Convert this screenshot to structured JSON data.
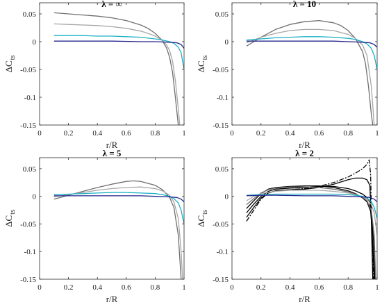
{
  "chart_data": [
    {
      "type": "line",
      "title": "λ = ∞",
      "xlabel": "r/R",
      "ylabel": "ΔC",
      "ylabel_sub": "ts",
      "xlim": [
        0,
        1
      ],
      "ylim": [
        -0.15,
        0.07
      ],
      "xticks": [
        0,
        0.2,
        0.4,
        0.6,
        0.8,
        1
      ],
      "xtick_labels": [
        "0",
        "0.2",
        "0.4",
        "0.6",
        "0.8",
        "1"
      ],
      "yticks": [
        0.05,
        0,
        -0.05,
        -0.1,
        -0.15
      ],
      "ytick_labels": [
        "0.05",
        "0",
        "-0.05",
        "-0.1",
        "-0.15"
      ],
      "grid": false,
      "series": [
        {
          "color": "#6e6e6e",
          "dash": "solid",
          "x": [
            0.1,
            0.2,
            0.3,
            0.4,
            0.5,
            0.6,
            0.7,
            0.75,
            0.8,
            0.85,
            0.88,
            0.9,
            0.92,
            0.94,
            0.96
          ],
          "y": [
            0.052,
            0.05,
            0.048,
            0.046,
            0.043,
            0.038,
            0.03,
            0.024,
            0.015,
            0.002,
            -0.012,
            -0.028,
            -0.055,
            -0.1,
            -0.15
          ]
        },
        {
          "color": "#a6a6a6",
          "dash": "solid",
          "x": [
            0.1,
            0.2,
            0.3,
            0.4,
            0.5,
            0.6,
            0.7,
            0.75,
            0.8,
            0.85,
            0.88,
            0.9,
            0.92,
            0.94,
            0.96,
            0.97
          ],
          "y": [
            0.032,
            0.031,
            0.03,
            0.029,
            0.027,
            0.024,
            0.019,
            0.015,
            0.01,
            0.002,
            -0.006,
            -0.016,
            -0.035,
            -0.07,
            -0.12,
            -0.15
          ]
        },
        {
          "color": "#1ab0c4",
          "dash": "solid",
          "x": [
            0.1,
            0.2,
            0.3,
            0.4,
            0.5,
            0.6,
            0.7,
            0.8,
            0.85,
            0.9,
            0.93,
            0.96,
            0.98,
            0.99,
            1.0
          ],
          "y": [
            0.011,
            0.011,
            0.011,
            0.01,
            0.01,
            0.009,
            0.008,
            0.005,
            0.003,
            0.0,
            -0.003,
            -0.01,
            -0.02,
            -0.035,
            -0.05
          ]
        },
        {
          "color": "#23238c",
          "dash": "solid",
          "x": [
            0.1,
            0.3,
            0.5,
            0.7,
            0.8,
            0.9,
            0.95,
            0.98,
            1.0
          ],
          "y": [
            0.001,
            0.001,
            0.001,
            0.0,
            0.0,
            -0.001,
            -0.002,
            -0.005,
            -0.012
          ]
        }
      ]
    },
    {
      "type": "line",
      "title": "λ = 10",
      "xlabel": "r/R",
      "ylabel": "ΔC",
      "ylabel_sub": "ts",
      "xlim": [
        0,
        1
      ],
      "ylim": [
        -0.15,
        0.07
      ],
      "xticks": [
        0,
        0.2,
        0.4,
        0.6,
        0.8,
        1
      ],
      "xtick_labels": [
        "0",
        "0.2",
        "0.4",
        "0.6",
        "0.8",
        "1"
      ],
      "yticks": [
        0.05,
        0,
        -0.05,
        -0.1,
        -0.15
      ],
      "ytick_labels": [
        "0.05",
        "0",
        "-0.05",
        "-0.1",
        "-0.15"
      ],
      "grid": false,
      "series": [
        {
          "color": "#6e6e6e",
          "dash": "solid",
          "x": [
            0.1,
            0.2,
            0.3,
            0.4,
            0.5,
            0.6,
            0.7,
            0.75,
            0.8,
            0.85,
            0.9,
            0.92,
            0.94,
            0.96,
            0.97
          ],
          "y": [
            -0.008,
            0.008,
            0.022,
            0.031,
            0.036,
            0.038,
            0.034,
            0.029,
            0.02,
            0.006,
            -0.018,
            -0.04,
            -0.08,
            -0.13,
            -0.15
          ]
        },
        {
          "color": "#a6a6a6",
          "dash": "solid",
          "x": [
            0.1,
            0.2,
            0.3,
            0.4,
            0.5,
            0.6,
            0.7,
            0.8,
            0.85,
            0.9,
            0.93,
            0.96,
            0.98
          ],
          "y": [
            -0.002,
            0.008,
            0.015,
            0.02,
            0.022,
            0.022,
            0.02,
            0.013,
            0.006,
            -0.006,
            -0.025,
            -0.08,
            -0.15
          ]
        },
        {
          "color": "#1ab0c4",
          "dash": "solid",
          "x": [
            0.1,
            0.2,
            0.3,
            0.4,
            0.5,
            0.6,
            0.7,
            0.8,
            0.85,
            0.9,
            0.93,
            0.96,
            0.98,
            1.0
          ],
          "y": [
            0.003,
            0.005,
            0.007,
            0.008,
            0.009,
            0.009,
            0.008,
            0.006,
            0.004,
            0.0,
            -0.004,
            -0.012,
            -0.025,
            -0.05
          ]
        },
        {
          "color": "#23238c",
          "dash": "solid",
          "x": [
            0.1,
            0.3,
            0.5,
            0.7,
            0.8,
            0.9,
            0.95,
            0.98,
            1.0
          ],
          "y": [
            0.001,
            0.001,
            0.001,
            0.001,
            0.0,
            -0.001,
            -0.002,
            -0.005,
            -0.01
          ]
        }
      ]
    },
    {
      "type": "line",
      "title": "λ = 5",
      "xlabel": "r/R",
      "ylabel": "ΔC",
      "ylabel_sub": "ts",
      "xlim": [
        0,
        1
      ],
      "ylim": [
        -0.15,
        0.07
      ],
      "xticks": [
        0,
        0.2,
        0.4,
        0.6,
        0.8,
        1
      ],
      "xtick_labels": [
        "0",
        "0.2",
        "0.4",
        "0.6",
        "0.8",
        "1"
      ],
      "yticks": [
        0.05,
        0,
        -0.05,
        -0.1,
        -0.15
      ],
      "ytick_labels": [
        "0.05",
        "0",
        "-0.05",
        "-0.1",
        "-0.15"
      ],
      "grid": false,
      "series": [
        {
          "color": "#6e6e6e",
          "dash": "solid",
          "x": [
            0.1,
            0.2,
            0.3,
            0.4,
            0.5,
            0.6,
            0.65,
            0.7,
            0.8,
            0.85,
            0.9,
            0.93,
            0.96,
            0.98
          ],
          "y": [
            -0.005,
            0.002,
            0.009,
            0.016,
            0.022,
            0.027,
            0.028,
            0.027,
            0.02,
            0.012,
            -0.002,
            -0.02,
            -0.07,
            -0.15
          ]
        },
        {
          "color": "#a6a6a6",
          "dash": "solid",
          "x": [
            0.1,
            0.2,
            0.3,
            0.4,
            0.5,
            0.6,
            0.7,
            0.8,
            0.85,
            0.9,
            0.93,
            0.96,
            0.98,
            0.99
          ],
          "y": [
            -0.001,
            0.003,
            0.007,
            0.011,
            0.014,
            0.016,
            0.017,
            0.014,
            0.01,
            0.002,
            -0.01,
            -0.04,
            -0.1,
            -0.15
          ]
        },
        {
          "color": "#1ab0c4",
          "dash": "solid",
          "x": [
            0.1,
            0.2,
            0.3,
            0.4,
            0.5,
            0.6,
            0.7,
            0.8,
            0.85,
            0.9,
            0.93,
            0.96,
            0.98,
            1.0
          ],
          "y": [
            0.003,
            0.004,
            0.005,
            0.006,
            0.007,
            0.007,
            0.006,
            0.005,
            0.003,
            0.0,
            -0.004,
            -0.012,
            -0.025,
            -0.05
          ]
        },
        {
          "color": "#23238c",
          "dash": "solid",
          "x": [
            0.1,
            0.3,
            0.5,
            0.7,
            0.8,
            0.9,
            0.95,
            0.98,
            1.0
          ],
          "y": [
            0.001,
            0.001,
            0.001,
            0.001,
            0.0,
            -0.001,
            -0.002,
            -0.005,
            -0.01
          ]
        }
      ]
    },
    {
      "type": "line",
      "title": "λ = 2",
      "xlabel": "r/R",
      "ylabel": "ΔC",
      "ylabel_sub": "ts",
      "xlim": [
        0,
        1
      ],
      "ylim": [
        -0.15,
        0.07
      ],
      "xticks": [
        0,
        0.2,
        0.4,
        0.6,
        0.8,
        1
      ],
      "xtick_labels": [
        "0",
        "0.2",
        "0.4",
        "0.6",
        "0.8",
        "1"
      ],
      "yticks": [
        0.05,
        0,
        -0.05,
        -0.1,
        -0.15
      ],
      "ytick_labels": [
        "0.05",
        "0",
        "-0.05",
        "-0.1",
        "-0.15"
      ],
      "grid": false,
      "series": [
        {
          "color": "#000000",
          "dash": "dashdot",
          "x": [
            0.1,
            0.15,
            0.2,
            0.25,
            0.3,
            0.4,
            0.5,
            0.6,
            0.7,
            0.8,
            0.85,
            0.9,
            0.93,
            0.945,
            0.955,
            0.965,
            0.975
          ],
          "y": [
            -0.045,
            -0.025,
            -0.005,
            0.006,
            0.01,
            0.012,
            0.014,
            0.018,
            0.025,
            0.035,
            0.042,
            0.05,
            0.058,
            0.066,
            0.04,
            -0.08,
            -0.15
          ]
        },
        {
          "color": "#000000",
          "dash": "solid",
          "x": [
            0.1,
            0.15,
            0.2,
            0.25,
            0.3,
            0.4,
            0.5,
            0.6,
            0.7,
            0.8,
            0.85,
            0.9,
            0.93,
            0.95,
            0.96,
            0.97
          ],
          "y": [
            -0.038,
            -0.02,
            -0.003,
            0.006,
            0.01,
            0.012,
            0.013,
            0.016,
            0.022,
            0.03,
            0.033,
            0.033,
            0.03,
            0.02,
            -0.04,
            -0.15
          ]
        },
        {
          "color": "#000000",
          "dash": "solid",
          "x": [
            0.1,
            0.15,
            0.2,
            0.25,
            0.3,
            0.4,
            0.5,
            0.6,
            0.7,
            0.8,
            0.85,
            0.9,
            0.93,
            0.95,
            0.965,
            0.98
          ],
          "y": [
            -0.03,
            -0.014,
            0.0,
            0.009,
            0.013,
            0.015,
            0.016,
            0.018,
            0.018,
            0.014,
            0.01,
            0.004,
            -0.002,
            -0.01,
            -0.06,
            -0.15
          ]
        },
        {
          "color": "#000000",
          "dash": "solid",
          "x": [
            0.1,
            0.15,
            0.2,
            0.25,
            0.3,
            0.4,
            0.5,
            0.6,
            0.7,
            0.8,
            0.85,
            0.9,
            0.93,
            0.96,
            0.975,
            0.985
          ],
          "y": [
            -0.022,
            -0.008,
            0.005,
            0.013,
            0.016,
            0.018,
            0.019,
            0.019,
            0.016,
            0.01,
            0.005,
            -0.003,
            -0.01,
            -0.03,
            -0.08,
            -0.15
          ]
        },
        {
          "color": "#6e6e6e",
          "dash": "solid",
          "x": [
            0.1,
            0.15,
            0.2,
            0.25,
            0.3,
            0.4,
            0.5,
            0.6,
            0.7,
            0.8,
            0.85,
            0.9,
            0.93,
            0.96,
            0.98,
            0.99
          ],
          "y": [
            -0.015,
            -0.004,
            0.006,
            0.012,
            0.015,
            0.017,
            0.017,
            0.016,
            0.013,
            0.008,
            0.004,
            -0.002,
            -0.008,
            -0.025,
            -0.07,
            -0.15
          ]
        },
        {
          "color": "#a6a6a6",
          "dash": "solid",
          "x": [
            0.1,
            0.15,
            0.2,
            0.3,
            0.4,
            0.5,
            0.6,
            0.7,
            0.8,
            0.85,
            0.9,
            0.93,
            0.96,
            0.98,
            1.0
          ],
          "y": [
            -0.008,
            0.0,
            0.005,
            0.009,
            0.011,
            0.011,
            0.011,
            0.009,
            0.006,
            0.003,
            -0.001,
            -0.005,
            -0.015,
            -0.03,
            -0.07
          ]
        },
        {
          "color": "#1ab0c4",
          "dash": "solid",
          "x": [
            0.1,
            0.2,
            0.3,
            0.4,
            0.5,
            0.6,
            0.7,
            0.8,
            0.85,
            0.9,
            0.93,
            0.96,
            0.98,
            1.0
          ],
          "y": [
            0.002,
            0.003,
            0.004,
            0.004,
            0.004,
            0.004,
            0.004,
            0.003,
            0.002,
            0.0,
            -0.003,
            -0.01,
            -0.02,
            -0.04
          ]
        },
        {
          "color": "#23238c",
          "dash": "solid",
          "x": [
            0.1,
            0.2,
            0.3,
            0.5,
            0.7,
            0.8,
            0.9,
            0.95,
            0.98,
            1.0
          ],
          "y": [
            0.001,
            0.002,
            0.002,
            0.001,
            0.001,
            0.0,
            -0.001,
            -0.002,
            -0.005,
            -0.01
          ]
        }
      ]
    }
  ]
}
